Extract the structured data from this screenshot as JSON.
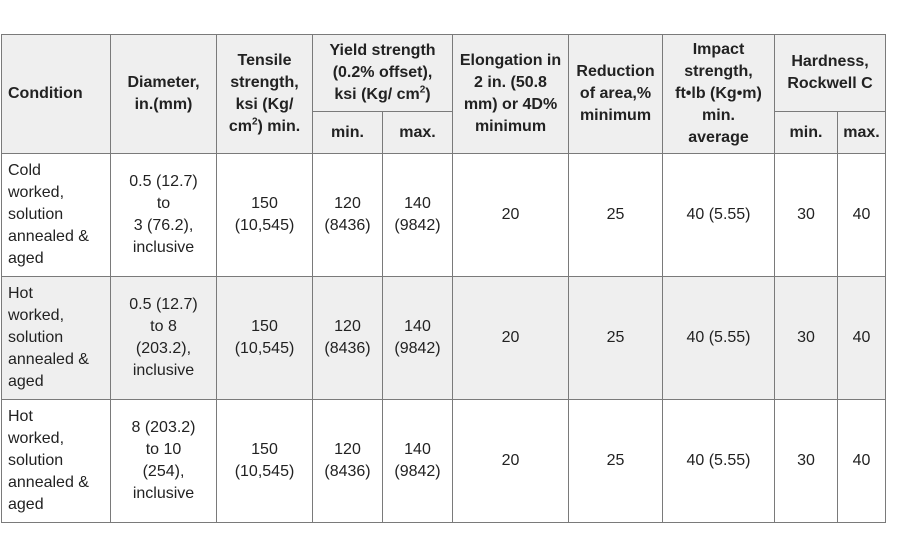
{
  "table": {
    "headers": {
      "condition": "Condition",
      "diameter": "Diameter,\nin.(mm)",
      "tensile_pre": "Tensile\nstrength,\nksi (Kg/\ncm",
      "tensile_sup": "2",
      "tensile_post": ") min.",
      "yield_pre": "Yield strength\n(0.2% offset),\nksi (Kg/ cm",
      "yield_sup": "2",
      "yield_post": ")",
      "elongation": "Elongation in\n2 in. (50.8\nmm) or 4D%\nminimum",
      "reduction": "Reduction\nof area,%\nminimum",
      "impact": "Impact\nstrength,\nft•lb (Kg•m)\nmin.\naverage",
      "hardness": "Hardness,\nRockwell C",
      "yield_min": "min.",
      "yield_max": "max.",
      "hard_min": "min.",
      "hard_max": "max."
    },
    "rows": [
      {
        "condition": "Cold\nworked,\nsolution\nannealed &\naged",
        "diameter": "0.5 (12.7)\nto\n3 (76.2),\ninclusive",
        "tensile": "150\n(10,545)",
        "yield_min": "120\n(8436)",
        "yield_max": "140\n(9842)",
        "elongation": "20",
        "reduction": "25",
        "impact": "40 (5.55)",
        "hard_min": "30",
        "hard_max": "40"
      },
      {
        "condition": "Hot\nworked,\nsolution\nannealed &\naged",
        "diameter": "0.5 (12.7)\nto 8\n(203.2),\ninclusive",
        "tensile": "150\n(10,545)",
        "yield_min": "120\n(8436)",
        "yield_max": "140\n(9842)",
        "elongation": "20",
        "reduction": "25",
        "impact": "40 (5.55)",
        "hard_min": "30",
        "hard_max": "40"
      },
      {
        "condition": "Hot\nworked,\nsolution\nannealed &\naged",
        "diameter": "8 (203.2)\nto 10\n(254),\ninclusive",
        "tensile": "150\n(10,545)",
        "yield_min": "120\n(8436)",
        "yield_max": "140\n(9842)",
        "elongation": "20",
        "reduction": "25",
        "impact": "40 (5.55)",
        "hard_min": "30",
        "hard_max": "40"
      }
    ]
  }
}
